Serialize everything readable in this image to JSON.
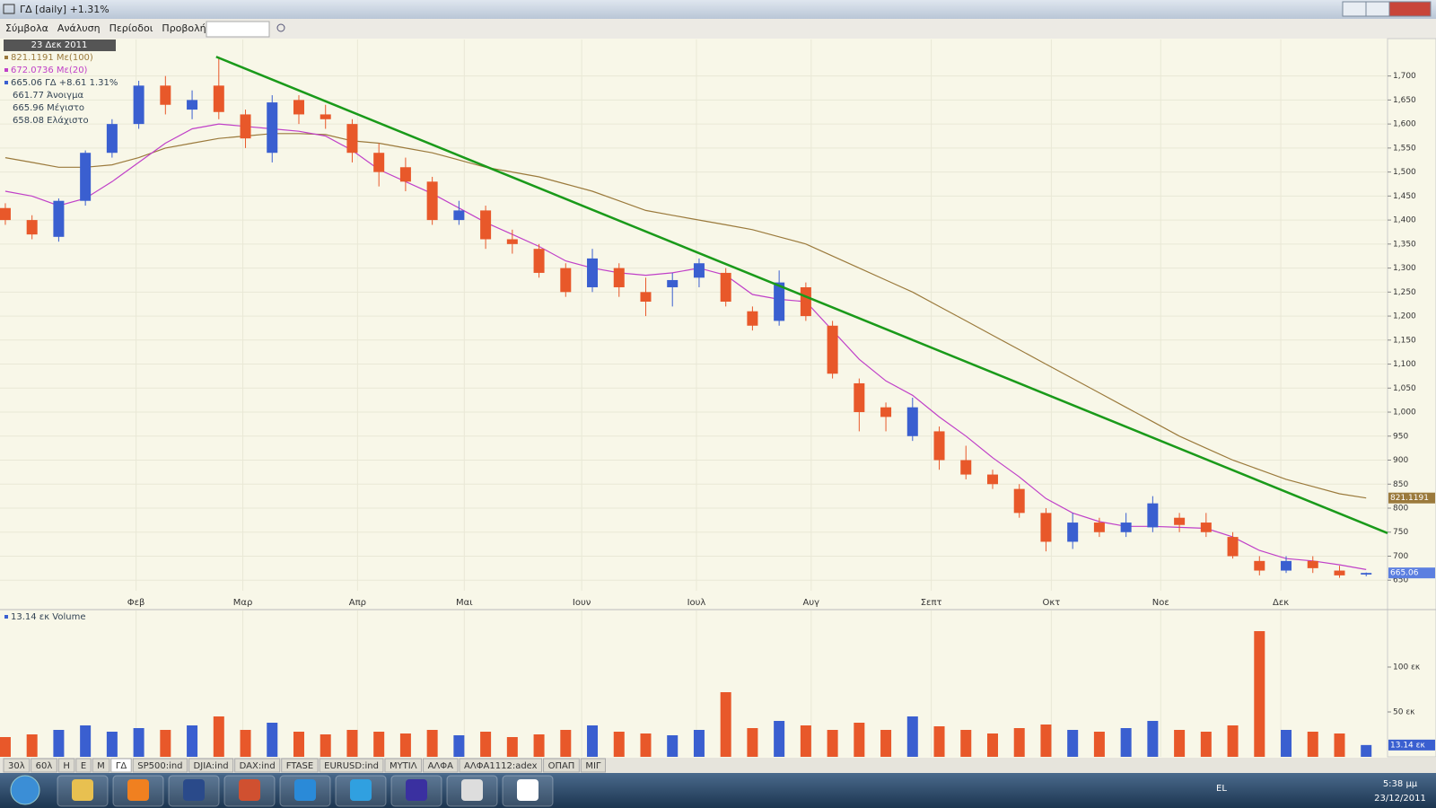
{
  "window": {
    "title": "ΓΔ [daily] +1.31%"
  },
  "menu": [
    "Σύμβολα",
    "Ανάλυση",
    "Περίοδοι",
    "Προβολή"
  ],
  "chart_data": {
    "type": "candlestick",
    "legend": [
      "23 Δεκ 2011",
      "821.1191 Με(100)",
      "672.0736 Με(20)",
      "665.06 ΓΔ +8.61 1.31%",
      "661.77 Άνοιγμα",
      "665.96 Μέγιστο",
      "658.08 Ελάχιστο"
    ],
    "volume_label": "13.14 εκ Volume",
    "x": [
      0,
      1,
      2,
      3,
      4,
      5,
      6,
      7,
      8,
      9,
      10,
      11,
      12,
      13,
      14,
      15,
      16,
      17,
      18,
      19,
      20,
      21,
      22,
      23,
      24,
      25,
      26,
      27,
      28,
      29,
      30,
      31,
      32,
      33,
      34,
      35,
      36,
      37,
      38,
      39,
      40,
      41,
      42,
      43,
      44,
      45,
      46,
      47,
      48,
      49,
      50,
      51
    ],
    "open": [
      1425,
      1400,
      1365,
      1440,
      1540,
      1600,
      1680,
      1630,
      1680,
      1620,
      1540,
      1650,
      1620,
      1600,
      1540,
      1510,
      1480,
      1400,
      1420,
      1360,
      1340,
      1300,
      1260,
      1300,
      1250,
      1260,
      1280,
      1290,
      1210,
      1190,
      1260,
      1180,
      1060,
      1010,
      950,
      960,
      900,
      870,
      840,
      790,
      730,
      770,
      750,
      760,
      780,
      770,
      740,
      690,
      670,
      690,
      670,
      661.77
    ],
    "high": [
      1435,
      1410,
      1445,
      1545,
      1610,
      1690,
      1700,
      1670,
      1740,
      1630,
      1660,
      1660,
      1640,
      1610,
      1560,
      1530,
      1490,
      1440,
      1430,
      1380,
      1350,
      1310,
      1340,
      1310,
      1280,
      1290,
      1320,
      1300,
      1220,
      1295,
      1270,
      1190,
      1070,
      1020,
      1030,
      970,
      930,
      880,
      850,
      800,
      790,
      780,
      790,
      825,
      790,
      790,
      750,
      700,
      700,
      700,
      680,
      665.96
    ],
    "low": [
      1390,
      1360,
      1355,
      1430,
      1530,
      1590,
      1620,
      1610,
      1610,
      1550,
      1520,
      1600,
      1590,
      1520,
      1470,
      1460,
      1390,
      1390,
      1340,
      1330,
      1280,
      1240,
      1250,
      1240,
      1200,
      1220,
      1260,
      1220,
      1170,
      1180,
      1190,
      1070,
      960,
      960,
      940,
      880,
      860,
      840,
      780,
      710,
      715,
      740,
      740,
      750,
      750,
      740,
      695,
      660,
      665,
      665,
      655,
      658.08
    ],
    "close": [
      1400,
      1370,
      1440,
      1540,
      1600,
      1680,
      1640,
      1650,
      1625,
      1570,
      1645,
      1620,
      1610,
      1540,
      1500,
      1480,
      1400,
      1420,
      1360,
      1350,
      1290,
      1250,
      1320,
      1260,
      1230,
      1275,
      1310,
      1230,
      1180,
      1270,
      1200,
      1080,
      1000,
      990,
      1010,
      900,
      870,
      850,
      790,
      730,
      770,
      750,
      770,
      810,
      765,
      750,
      700,
      670,
      690,
      675,
      660,
      665.06
    ],
    "volume": [
      22,
      25,
      30,
      35,
      28,
      32,
      30,
      35,
      45,
      30,
      38,
      28,
      25,
      30,
      28,
      26,
      30,
      24,
      28,
      22,
      25,
      30,
      35,
      28,
      26,
      24,
      30,
      72,
      32,
      40,
      35,
      30,
      38,
      30,
      45,
      34,
      30,
      26,
      32,
      36,
      30,
      28,
      32,
      40,
      30,
      28,
      35,
      140,
      30,
      28,
      26,
      13.14
    ],
    "volume_value_label": "13.14 εκ",
    "lines": [
      {
        "color": "#9b7a3c",
        "values": [
          1530,
          1520,
          1510,
          1510,
          1515,
          1530,
          1550,
          1560,
          1570,
          1575,
          1580,
          1580,
          1578,
          1565,
          1560,
          1550,
          1540,
          1525,
          1510,
          1500,
          1490,
          1475,
          1460,
          1440,
          1420,
          1410,
          1400,
          1390,
          1380,
          1365,
          1350,
          1325,
          1300,
          1275,
          1250,
          1220,
          1190,
          1160,
          1130,
          1100,
          1070,
          1040,
          1010,
          980,
          950,
          925,
          900,
          880,
          860,
          845,
          830,
          821.1191
        ]
      },
      {
        "color": "#c040c8",
        "values": [
          1460,
          1450,
          1430,
          1445,
          1480,
          1520,
          1560,
          1590,
          1600,
          1595,
          1590,
          1585,
          1575,
          1545,
          1505,
          1480,
          1455,
          1425,
          1395,
          1370,
          1345,
          1315,
          1300,
          1290,
          1285,
          1290,
          1300,
          1285,
          1245,
          1235,
          1230,
          1170,
          1110,
          1065,
          1035,
          990,
          950,
          905,
          865,
          820,
          790,
          772,
          762,
          762,
          760,
          758,
          740,
          712,
          695,
          690,
          682,
          672.0736
        ]
      }
    ],
    "trendline": {
      "x": [
        7.9,
        51.8
      ],
      "y": [
        1740,
        748
      ],
      "color": "#1a9a1a"
    },
    "up_color": "#3a5fd0",
    "down_color": "#e8582a",
    "xlim": [
      -0.2,
      51.8
    ],
    "ylim": [
      628,
      1776
    ],
    "xticks": [
      {
        "value": 4.9,
        "label": "Φεβ"
      },
      {
        "value": 8.9,
        "label": "Μαρ"
      },
      {
        "value": 13.2,
        "label": "Απρ"
      },
      {
        "value": 17.2,
        "label": "Μαι"
      },
      {
        "value": 21.6,
        "label": "Ιουν"
      },
      {
        "value": 25.9,
        "label": "Ιουλ"
      },
      {
        "value": 30.2,
        "label": "Αυγ"
      },
      {
        "value": 34.7,
        "label": "Σεπτ"
      },
      {
        "value": 39.2,
        "label": "Οκτ"
      },
      {
        "value": 43.3,
        "label": "Νοε"
      },
      {
        "value": 47.8,
        "label": "Δεκ"
      }
    ],
    "yticks": [
      650,
      700,
      750,
      800,
      850,
      900,
      950,
      {
        "value": 1000,
        "label": "1,000"
      },
      {
        "value": 1050,
        "label": "1,050"
      },
      {
        "value": 1100,
        "label": "1,100"
      },
      {
        "value": 1150,
        "label": "1,150"
      },
      {
        "value": 1200,
        "label": "1,200"
      },
      {
        "value": 1250,
        "label": "1,250"
      },
      {
        "value": 1300,
        "label": "1,300"
      },
      {
        "value": 1350,
        "label": "1,350"
      },
      {
        "value": 1400,
        "label": "1,400"
      },
      {
        "value": 1450,
        "label": "1,450"
      },
      {
        "value": 1500,
        "label": "1,500"
      },
      {
        "value": 1550,
        "label": "1,550"
      },
      {
        "value": 1600,
        "label": "1,600"
      },
      {
        "value": 1650,
        "label": "1,650"
      },
      {
        "value": 1700,
        "label": "1,700"
      }
    ],
    "volume_lim": [
      0,
      164
    ],
    "volume_ticks": [
      {
        "value": 50,
        "label": "50 εκ"
      },
      {
        "value": 100,
        "label": "100 εκ"
      }
    ],
    "grid": true
  },
  "tabs": [
    "30λ",
    "60λ",
    "Η",
    "Ε",
    "Μ",
    "ΓΔ",
    "SP500:ind",
    "DJIA:ind",
    "DAX:ind",
    "FTASE",
    "EURUSD:ind",
    "ΜΥΤΙΛ",
    "ΑΛΦΑ",
    "ΑΛΦΑ1112:adex",
    "ΟΠΑΠ",
    "ΜΙΓ"
  ],
  "taskbar": {
    "language": "EL",
    "time": "5:38 μμ",
    "date": "23/12/2011"
  }
}
